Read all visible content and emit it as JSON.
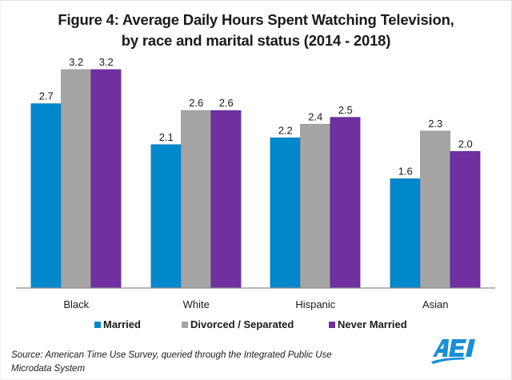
{
  "chart_data": {
    "type": "bar",
    "title": "Figure 4: Average Daily Hours Spent Watching Television,",
    "subtitle": "by race and marital status (2014 - 2018)",
    "xlabel": "",
    "ylabel": "",
    "ylim": [
      0,
      3.5
    ],
    "grid": false,
    "legend_position": "bottom",
    "categories": [
      "Black",
      "White",
      "Hispanic",
      "Asian"
    ],
    "series": [
      {
        "name": "Married",
        "color": "#0088CC",
        "values": [
          2.7,
          2.1,
          2.2,
          1.6
        ],
        "labels": [
          "2.7",
          "2.1",
          "2.2",
          "1.6"
        ]
      },
      {
        "name": "Divorced / Separated",
        "color": "#A5A5A5",
        "values": [
          3.2,
          2.6,
          2.4,
          2.3
        ],
        "labels": [
          "3.2",
          "2.6",
          "2.4",
          "2.3"
        ]
      },
      {
        "name": "Never Married",
        "color": "#7030A0",
        "values": [
          3.2,
          2.6,
          2.5,
          2.0
        ],
        "labels": [
          "3.2",
          "2.6",
          "2.5",
          "2.0"
        ]
      }
    ]
  },
  "footer": {
    "source_line1": "Source: American Time Use Survey, queried through the Integrated Public Use",
    "source_line2": "Microdata System",
    "logo": "AEI",
    "logo_icon": "aei-logo-icon",
    "logo_color": "#1a8fd6"
  },
  "colors": {
    "axis": "#8c8c8c",
    "text": "#1a1a1a"
  }
}
